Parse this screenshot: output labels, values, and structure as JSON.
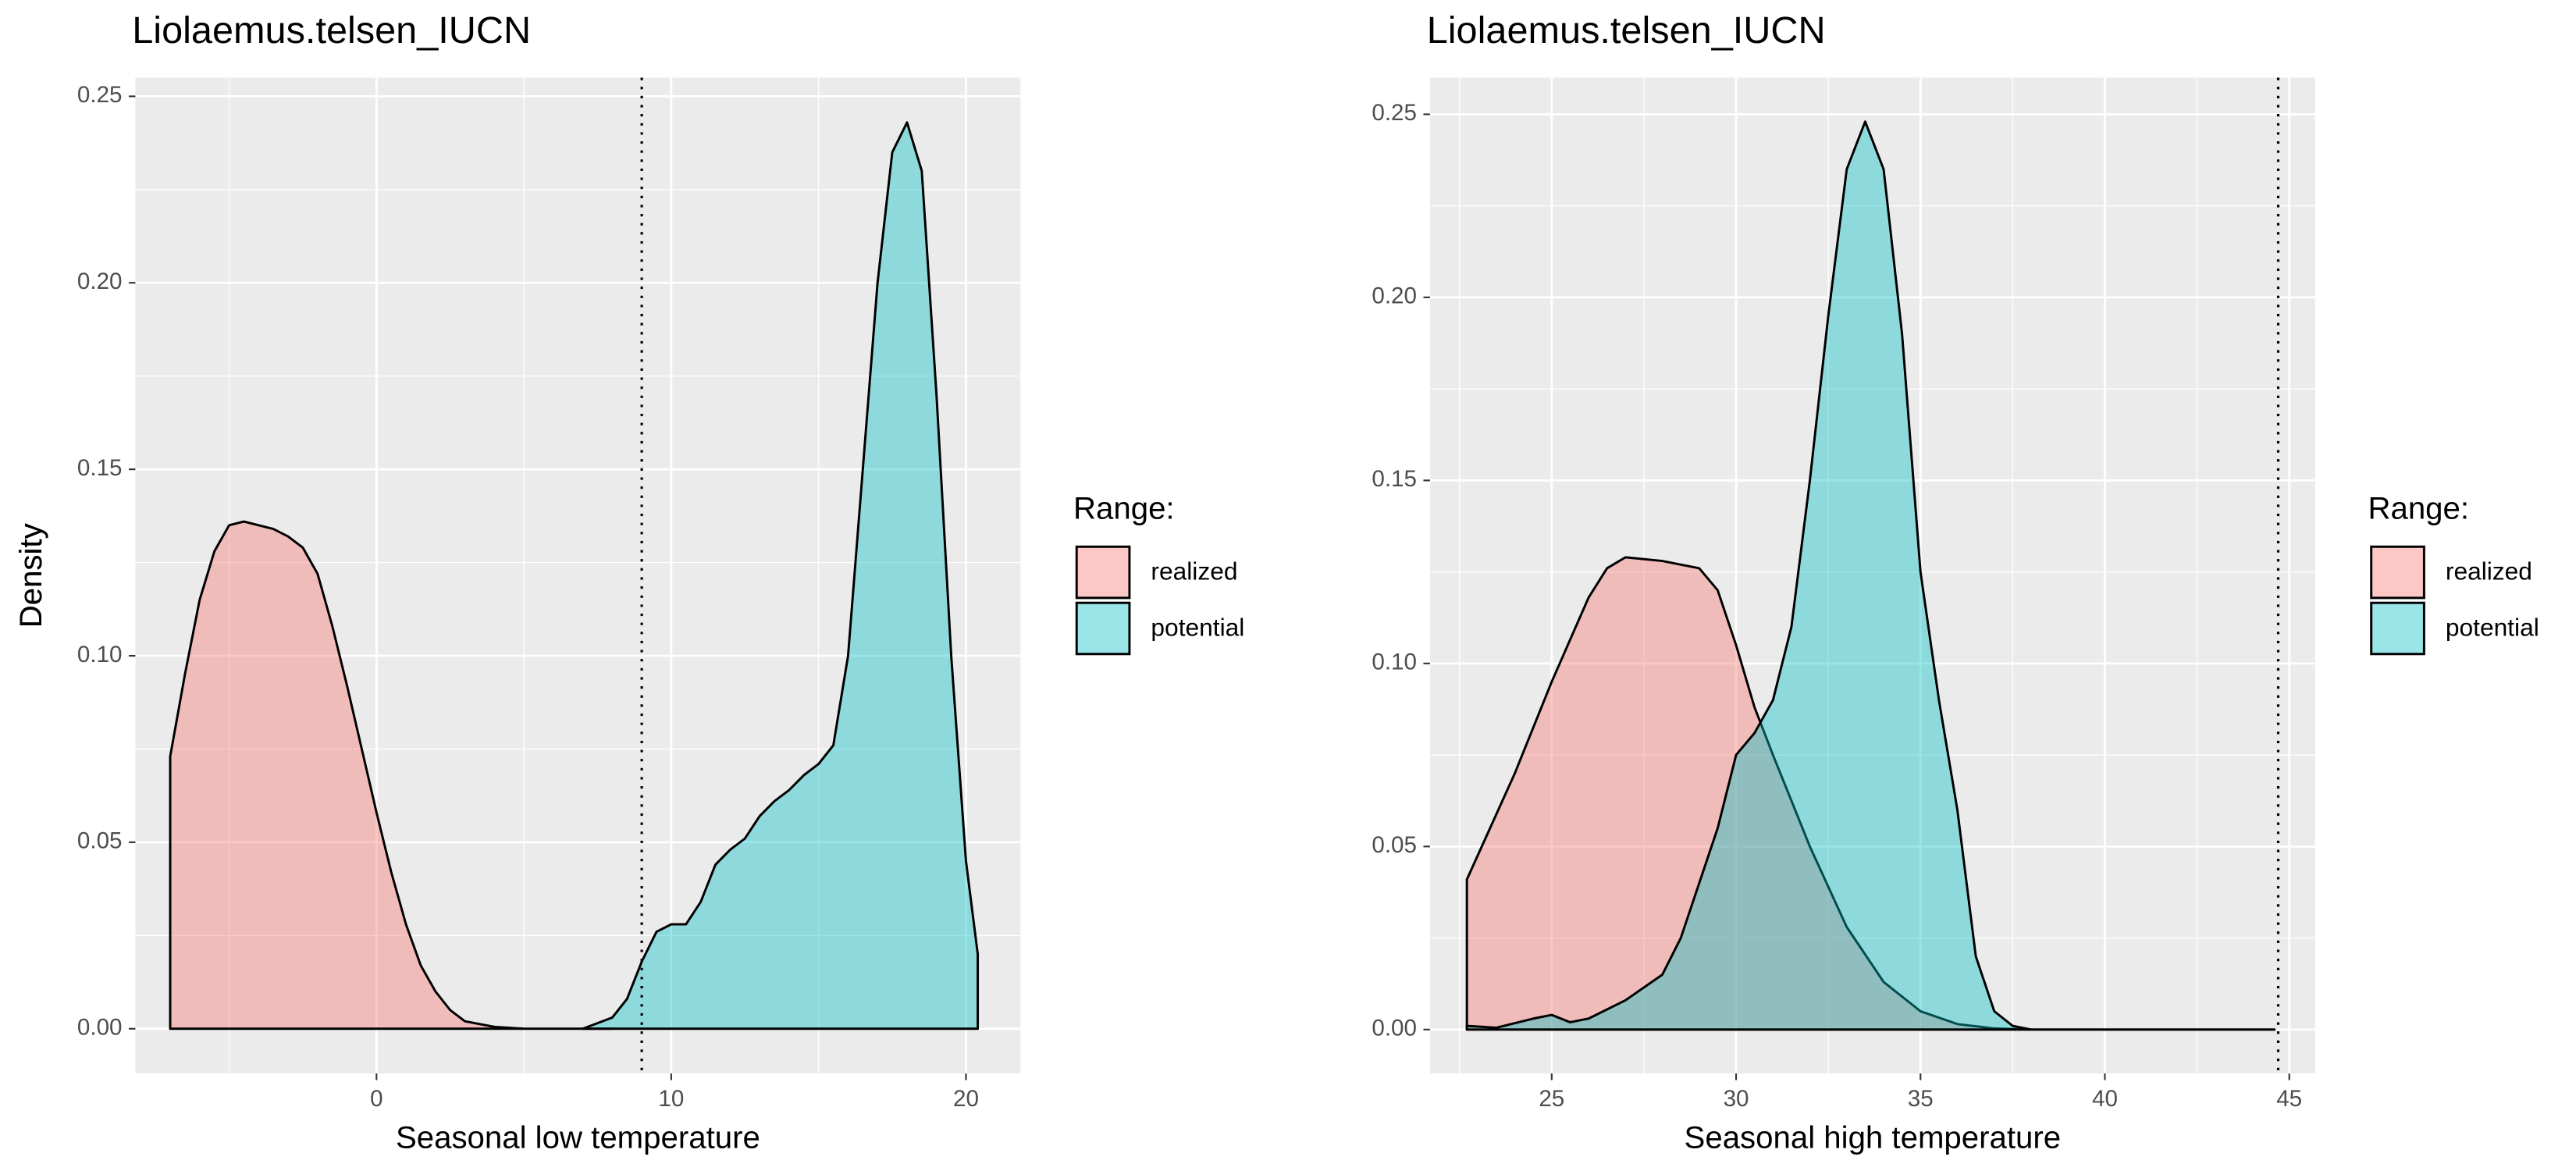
{
  "chart_data": [
    {
      "type": "density",
      "title": "Liolaemus.telsen_IUCN",
      "xlabel": "Seasonal low temperature",
      "ylabel": "Density",
      "legend_title": "Range:",
      "xlim": [
        -8.18,
        21.85
      ],
      "ylim": [
        -0.012,
        0.255
      ],
      "xticks": [
        0,
        10,
        20
      ],
      "yticks": [
        {
          "value": 0,
          "label": "0.00"
        },
        {
          "value": 0.05,
          "label": "0.05"
        },
        {
          "value": 0.1,
          "label": "0.10"
        },
        {
          "value": 0.15,
          "label": "0.15"
        },
        {
          "value": 0.2,
          "label": "0.20"
        },
        {
          "value": 0.25,
          "label": "0.25"
        }
      ],
      "vline": 9.0,
      "grid": true,
      "minor_grid": true,
      "series": [
        {
          "name": "realized",
          "color": "#F8766D",
          "x": [
            -7,
            -6.5,
            -6,
            -5.5,
            -5,
            -4.5,
            -4,
            -3.5,
            -3,
            -2.5,
            -2,
            -1.5,
            -1,
            -0.5,
            0,
            0.5,
            1,
            1.5,
            2,
            2.5,
            3,
            4,
            5,
            6,
            7,
            8
          ],
          "values": [
            0.073,
            0.095,
            0.115,
            0.128,
            0.135,
            0.136,
            0.135,
            0.134,
            0.132,
            0.129,
            0.122,
            0.108,
            0.092,
            0.075,
            0.058,
            0.042,
            0.028,
            0.017,
            0.01,
            0.005,
            0.002,
            0.0005,
            0,
            0,
            0,
            0
          ]
        },
        {
          "name": "potential",
          "color": "#00BFC4",
          "x": [
            7,
            8,
            8.5,
            9,
            9.5,
            10,
            10.5,
            11,
            11.5,
            12,
            12.5,
            13,
            13.5,
            14,
            14.5,
            15,
            15.5,
            16,
            16.5,
            17,
            17.5,
            18,
            18.5,
            19,
            19.5,
            20,
            20.4
          ],
          "values": [
            0,
            0.003,
            0.008,
            0.018,
            0.026,
            0.028,
            0.028,
            0.034,
            0.044,
            0.048,
            0.051,
            0.057,
            0.061,
            0.064,
            0.068,
            0.071,
            0.076,
            0.1,
            0.15,
            0.2,
            0.235,
            0.243,
            0.23,
            0.17,
            0.1,
            0.045,
            0.02
          ]
        }
      ]
    },
    {
      "type": "density",
      "title": "Liolaemus.telsen_IUCN",
      "xlabel": "Seasonal high temperature",
      "ylabel": "Density",
      "legend_title": "Range:",
      "xlim": [
        21.7,
        45.7
      ],
      "ylim": [
        -0.012,
        0.26
      ],
      "xticks": [
        25,
        30,
        35,
        40,
        45
      ],
      "yticks": [
        {
          "value": 0,
          "label": "0.00"
        },
        {
          "value": 0.05,
          "label": "0.05"
        },
        {
          "value": 0.1,
          "label": "0.10"
        },
        {
          "value": 0.15,
          "label": "0.15"
        },
        {
          "value": 0.2,
          "label": "0.20"
        },
        {
          "value": 0.25,
          "label": "0.25"
        }
      ],
      "vline": 44.7,
      "grid": true,
      "minor_grid": true,
      "series": [
        {
          "name": "realized",
          "color": "#F8766D",
          "x": [
            22.7,
            24,
            25,
            26,
            26.5,
            27,
            28,
            29,
            29.5,
            30,
            30.5,
            31,
            32,
            33,
            34,
            35,
            36,
            37,
            38,
            44.6
          ],
          "values": [
            0.041,
            0.07,
            0.095,
            0.118,
            0.126,
            0.129,
            0.128,
            0.126,
            0.12,
            0.105,
            0.088,
            0.075,
            0.05,
            0.028,
            0.013,
            0.005,
            0.0015,
            0.0003,
            0,
            0
          ]
        },
        {
          "name": "potential",
          "color": "#00BFC4",
          "x": [
            22.7,
            23.5,
            24.5,
            25,
            25.5,
            26,
            27,
            28,
            28.5,
            29,
            29.5,
            30,
            30.5,
            31,
            31.5,
            32,
            32.5,
            33,
            33.5,
            34,
            34.5,
            35,
            35.5,
            36,
            36.5,
            37,
            37.5,
            38,
            44.6
          ],
          "values": [
            0.001,
            0.0005,
            0.003,
            0.004,
            0.002,
            0.003,
            0.008,
            0.015,
            0.025,
            0.04,
            0.055,
            0.075,
            0.081,
            0.09,
            0.11,
            0.15,
            0.195,
            0.235,
            0.248,
            0.235,
            0.19,
            0.125,
            0.09,
            0.06,
            0.02,
            0.005,
            0.001,
            0,
            0
          ]
        }
      ]
    }
  ]
}
